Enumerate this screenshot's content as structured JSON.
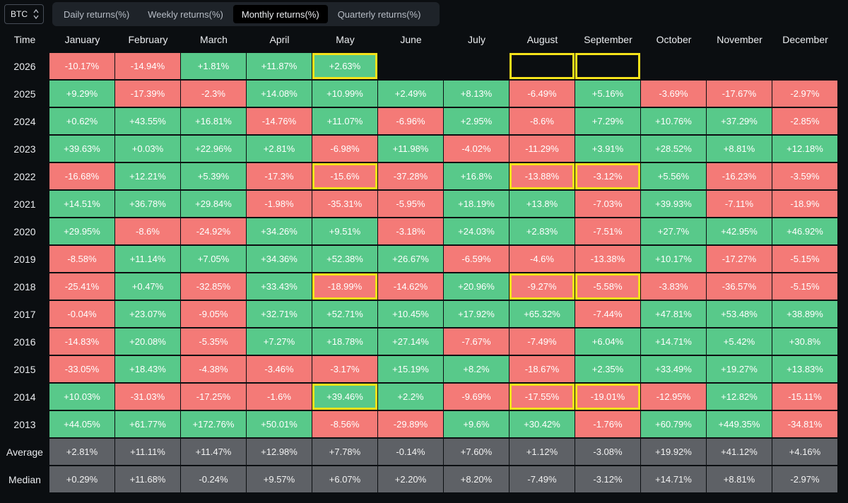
{
  "asset_selector": {
    "value": "BTC"
  },
  "tabs": [
    {
      "label": "Daily returns(%)",
      "active": false
    },
    {
      "label": "Weekly returns(%)",
      "active": false
    },
    {
      "label": "Monthly returns(%)",
      "active": true
    },
    {
      "label": "Quarterly returns(%)",
      "active": false
    }
  ],
  "colors": {
    "positive": "#58c98a",
    "negative": "#f47a77",
    "stat": "#5e6166",
    "highlight": "#f5e21a",
    "background": "#0b0e11"
  },
  "table": {
    "corner_label": "Time",
    "months": [
      "January",
      "February",
      "March",
      "April",
      "May",
      "June",
      "July",
      "August",
      "September",
      "October",
      "November",
      "December"
    ],
    "rows": [
      {
        "year": "2026",
        "values": [
          "-10.17%",
          "-14.94%",
          "+1.81%",
          "+11.87%",
          "+2.63%",
          "",
          "",
          "",
          "",
          "",
          "",
          ""
        ],
        "highlight": [
          4,
          7,
          8
        ]
      },
      {
        "year": "2025",
        "values": [
          "+9.29%",
          "-17.39%",
          "-2.3%",
          "+14.08%",
          "+10.99%",
          "+2.49%",
          "+8.13%",
          "-6.49%",
          "+5.16%",
          "-3.69%",
          "-17.67%",
          "-2.97%"
        ],
        "highlight": []
      },
      {
        "year": "2024",
        "values": [
          "+0.62%",
          "+43.55%",
          "+16.81%",
          "-14.76%",
          "+11.07%",
          "-6.96%",
          "+2.95%",
          "-8.6%",
          "+7.29%",
          "+10.76%",
          "+37.29%",
          "-2.85%"
        ],
        "highlight": []
      },
      {
        "year": "2023",
        "values": [
          "+39.63%",
          "+0.03%",
          "+22.96%",
          "+2.81%",
          "-6.98%",
          "+11.98%",
          "-4.02%",
          "-11.29%",
          "+3.91%",
          "+28.52%",
          "+8.81%",
          "+12.18%"
        ],
        "highlight": []
      },
      {
        "year": "2022",
        "values": [
          "-16.68%",
          "+12.21%",
          "+5.39%",
          "-17.3%",
          "-15.6%",
          "-37.28%",
          "+16.8%",
          "-13.88%",
          "-3.12%",
          "+5.56%",
          "-16.23%",
          "-3.59%"
        ],
        "highlight": [
          4,
          7,
          8
        ]
      },
      {
        "year": "2021",
        "values": [
          "+14.51%",
          "+36.78%",
          "+29.84%",
          "-1.98%",
          "-35.31%",
          "-5.95%",
          "+18.19%",
          "+13.8%",
          "-7.03%",
          "+39.93%",
          "-7.11%",
          "-18.9%"
        ],
        "highlight": []
      },
      {
        "year": "2020",
        "values": [
          "+29.95%",
          "-8.6%",
          "-24.92%",
          "+34.26%",
          "+9.51%",
          "-3.18%",
          "+24.03%",
          "+2.83%",
          "-7.51%",
          "+27.7%",
          "+42.95%",
          "+46.92%"
        ],
        "highlight": []
      },
      {
        "year": "2019",
        "values": [
          "-8.58%",
          "+11.14%",
          "+7.05%",
          "+34.36%",
          "+52.38%",
          "+26.67%",
          "-6.59%",
          "-4.6%",
          "-13.38%",
          "+10.17%",
          "-17.27%",
          "-5.15%"
        ],
        "highlight": []
      },
      {
        "year": "2018",
        "values": [
          "-25.41%",
          "+0.47%",
          "-32.85%",
          "+33.43%",
          "-18.99%",
          "-14.62%",
          "+20.96%",
          "-9.27%",
          "-5.58%",
          "-3.83%",
          "-36.57%",
          "-5.15%"
        ],
        "highlight": [
          4,
          7,
          8
        ]
      },
      {
        "year": "2017",
        "values": [
          "-0.04%",
          "+23.07%",
          "-9.05%",
          "+32.71%",
          "+52.71%",
          "+10.45%",
          "+17.92%",
          "+65.32%",
          "-7.44%",
          "+47.81%",
          "+53.48%",
          "+38.89%"
        ],
        "highlight": []
      },
      {
        "year": "2016",
        "values": [
          "-14.83%",
          "+20.08%",
          "-5.35%",
          "+7.27%",
          "+18.78%",
          "+27.14%",
          "-7.67%",
          "-7.49%",
          "+6.04%",
          "+14.71%",
          "+5.42%",
          "+30.8%"
        ],
        "highlight": []
      },
      {
        "year": "2015",
        "values": [
          "-33.05%",
          "+18.43%",
          "-4.38%",
          "-3.46%",
          "-3.17%",
          "+15.19%",
          "+8.2%",
          "-18.67%",
          "+2.35%",
          "+33.49%",
          "+19.27%",
          "+13.83%"
        ],
        "highlight": []
      },
      {
        "year": "2014",
        "values": [
          "+10.03%",
          "-31.03%",
          "-17.25%",
          "-1.6%",
          "+39.46%",
          "+2.2%",
          "-9.69%",
          "-17.55%",
          "-19.01%",
          "-12.95%",
          "+12.82%",
          "-15.11%"
        ],
        "highlight": [
          4,
          7,
          8
        ]
      },
      {
        "year": "2013",
        "values": [
          "+44.05%",
          "+61.77%",
          "+172.76%",
          "+50.01%",
          "-8.56%",
          "-29.89%",
          "+9.6%",
          "+30.42%",
          "-1.76%",
          "+60.79%",
          "+449.35%",
          "-34.81%"
        ],
        "highlight": []
      }
    ],
    "stats": [
      {
        "label": "Average",
        "values": [
          "+2.81%",
          "+11.11%",
          "+11.47%",
          "+12.98%",
          "+7.78%",
          "-0.14%",
          "+7.60%",
          "+1.12%",
          "-3.08%",
          "+19.92%",
          "+41.12%",
          "+4.16%"
        ]
      },
      {
        "label": "Median",
        "values": [
          "+0.29%",
          "+11.68%",
          "-0.24%",
          "+9.57%",
          "+6.07%",
          "+2.20%",
          "+8.20%",
          "-7.49%",
          "-3.12%",
          "+14.71%",
          "+8.81%",
          "-2.97%"
        ]
      }
    ]
  }
}
